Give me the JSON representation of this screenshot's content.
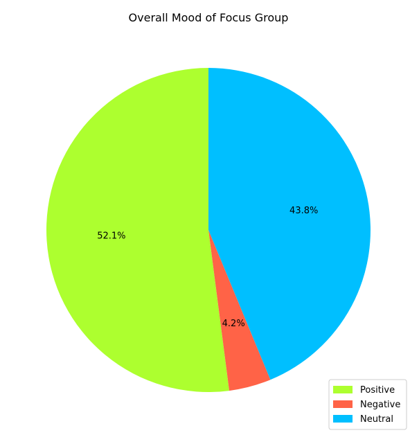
{
  "chart_data": {
    "type": "pie",
    "title": "Overall Mood of Focus Group",
    "categories": [
      "Positive",
      "Negative",
      "Neutral"
    ],
    "values": [
      52.1,
      4.2,
      43.8
    ],
    "labels": [
      "52.1%",
      "4.2%",
      "43.8%"
    ],
    "colors": [
      "#ADFF2F",
      "#FF6347",
      "#00BFFF"
    ],
    "start_angle_deg": 90,
    "direction": "counterclockwise",
    "legend_placement": "lower-right"
  }
}
